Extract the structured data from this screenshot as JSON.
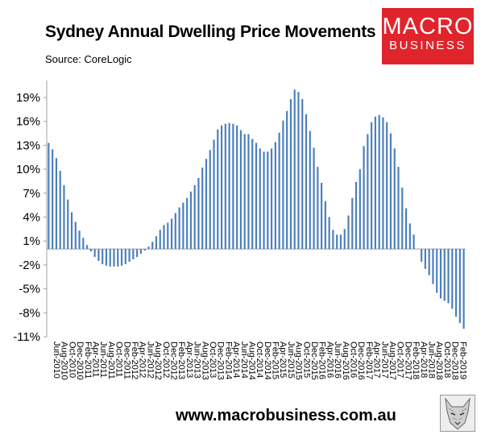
{
  "header": {
    "title": "Sydney Annual Dwelling Price Movements",
    "source": "Source: CoreLogic"
  },
  "logo": {
    "line1": "MACRO",
    "line2": "BUSINESS"
  },
  "footer": {
    "url": "www.macrobusiness.com.au"
  },
  "colors": {
    "bar": "#4a7ebb",
    "logo_bg": "#e0242b",
    "axis": "#a0a0a0"
  },
  "chart_data": {
    "type": "bar",
    "title": "Sydney Annual Dwelling Price Movements",
    "xlabel": "",
    "ylabel": "",
    "ylim": [
      -11,
      21
    ],
    "yticks": [
      19,
      16,
      13,
      10,
      7,
      4,
      1,
      -2,
      -5,
      -8,
      -11
    ],
    "ytick_labels": [
      "19%",
      "16%",
      "13%",
      "10%",
      "7%",
      "4%",
      "1%",
      "-2%",
      "-5%",
      "-8%",
      "-11%"
    ],
    "xtick_labels": [
      "Jun-2010",
      "Aug-2010",
      "Oct-2010",
      "Dec-2010",
      "Feb-2011",
      "Apr-2011",
      "Jun-2011",
      "Aug-2011",
      "Oct-2011",
      "Dec-2011",
      "Feb-2012",
      "Apr-2012",
      "Jun-2012",
      "Aug-2012",
      "Oct-2012",
      "Dec-2012",
      "Feb-2013",
      "Apr-2013",
      "Jun-2013",
      "Aug-2013",
      "Oct-2013",
      "Dec-2013",
      "Feb-2014",
      "Apr-2014",
      "Jun-2014",
      "Aug-2014",
      "Oct-2014",
      "Dec-2014",
      "Feb-2015",
      "Apr-2015",
      "Jun-2015",
      "Aug-2015",
      "Oct-2015",
      "Dec-2015",
      "Feb-2016",
      "Apr-2016",
      "Jun-2016",
      "Aug-2016",
      "Oct-2016",
      "Dec-2016",
      "Feb-2017",
      "Apr-2017",
      "Jun-2017",
      "Aug-2017",
      "Oct-2017",
      "Dec-2017",
      "Feb-2018",
      "Apr-2018",
      "Jun-2018",
      "Aug-2018",
      "Oct-2018",
      "Dec-2018",
      "Feb-2019"
    ],
    "grid": false,
    "legend": "none",
    "series": [
      {
        "values": [
          13.3,
          12.5,
          11.4,
          9.8,
          8.0,
          6.2,
          4.6,
          3.4,
          2.3,
          1.4,
          0.5,
          -0.3,
          -1.0,
          -1.5,
          -1.9,
          -2.1,
          -2.2,
          -2.2,
          -2.2,
          -2.1,
          -1.9,
          -1.6,
          -1.3,
          -1.0,
          -0.6,
          -0.2,
          0.3,
          0.9,
          1.6,
          2.4,
          3.0,
          3.3,
          3.8,
          4.5,
          5.2,
          5.8,
          6.4,
          7.2,
          8.0,
          8.9,
          10.2,
          11.3,
          12.4,
          13.7,
          15.0,
          15.5,
          15.7,
          15.8,
          15.7,
          15.5,
          14.9,
          14.4,
          14.4,
          13.8,
          13.3,
          12.6,
          12.2,
          12.2,
          12.6,
          13.4,
          14.6,
          16.1,
          17.3,
          18.8,
          20.0,
          19.7,
          18.8,
          16.9,
          14.8,
          12.7,
          10.3,
          8.3,
          6.0,
          4.0,
          2.4,
          1.8,
          1.8,
          2.5,
          4.2,
          6.4,
          8.4,
          10.0,
          12.9,
          14.4,
          15.9,
          16.6,
          16.8,
          16.5,
          15.9,
          14.5,
          12.6,
          10.3,
          7.7,
          5.1,
          3.2,
          1.8,
          0.0,
          -1.6,
          -2.5,
          -3.3,
          -4.4,
          -5.5,
          -6.2,
          -6.5,
          -6.8,
          -7.5,
          -8.5,
          -9.3,
          -10.0
        ]
      }
    ]
  }
}
